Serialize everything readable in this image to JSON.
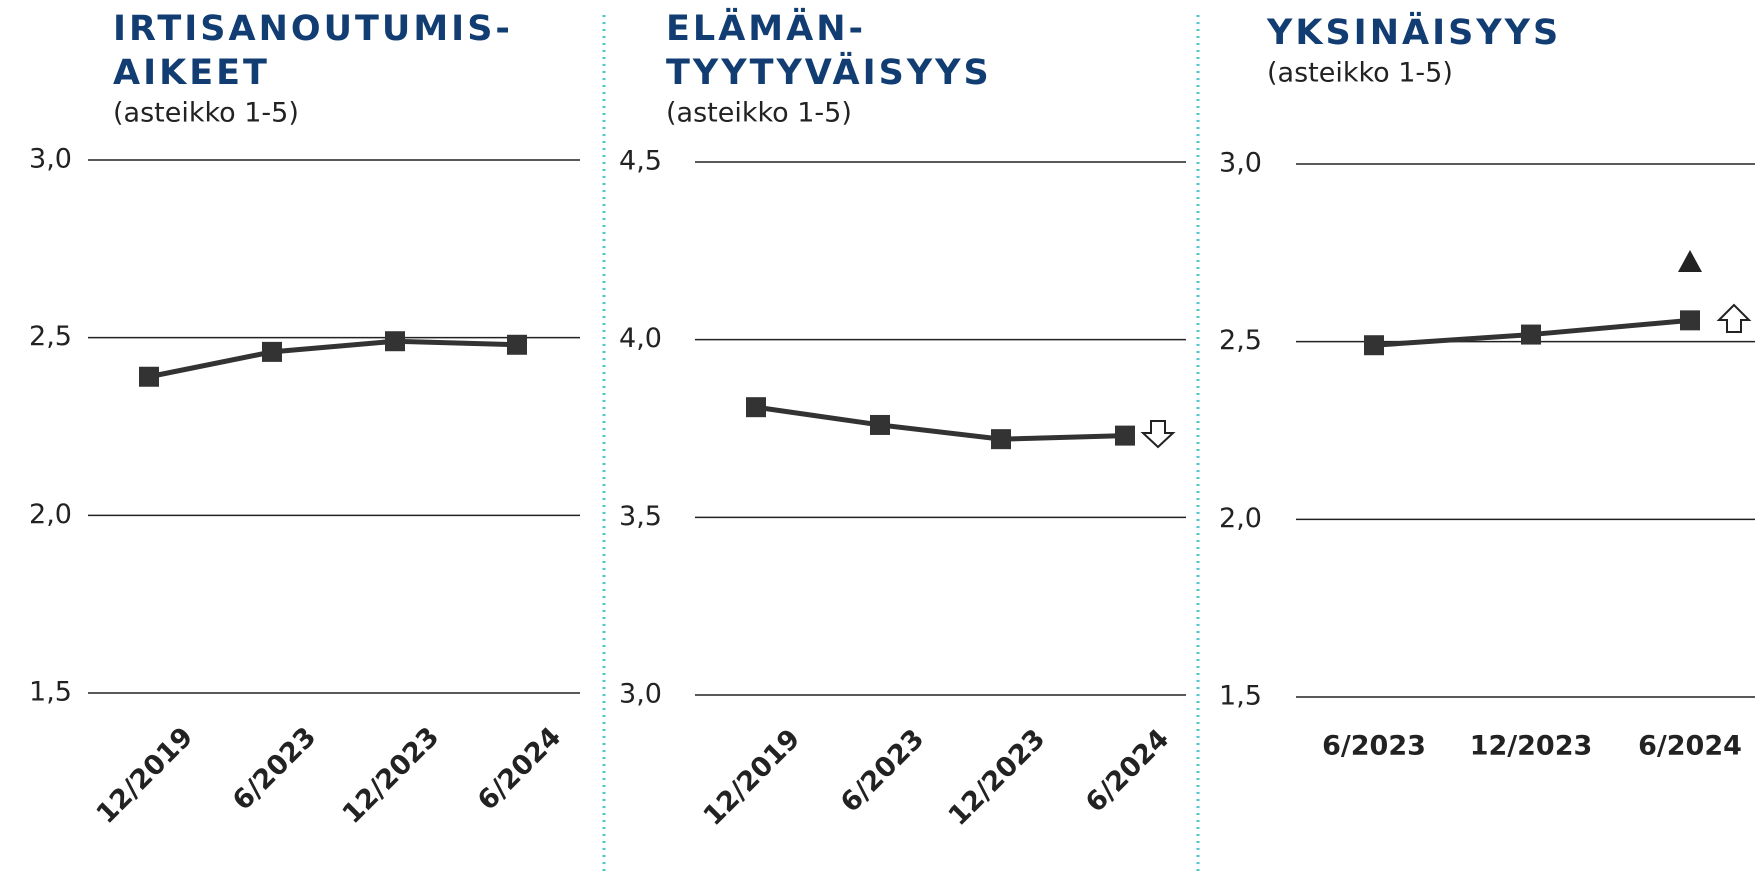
{
  "chart_data": [
    {
      "type": "line",
      "title": [
        "IRTISANOUTUMIS-",
        "AIKEET"
      ],
      "subtitle": "(asteikko 1-5)",
      "categories": [
        "12/2019",
        "6/2023",
        "12/2023",
        "6/2024"
      ],
      "series": [
        {
          "color": "#333333",
          "values": [
            2.39,
            2.46,
            2.49,
            2.48
          ]
        }
      ],
      "ylim": [
        1.5,
        3.0
      ],
      "yticks": [
        {
          "value": 1.5,
          "label": "1,5"
        },
        {
          "value": 2.0,
          "label": "2,0"
        },
        {
          "value": 2.5,
          "label": "2,5"
        },
        {
          "value": 3.0,
          "label": "3,0"
        }
      ],
      "grid": true
    },
    {
      "type": "line",
      "title": [
        "ELÄMÄN-",
        "TYYTYVÄISYYS"
      ],
      "subtitle": "(asteikko 1-5)",
      "categories": [
        "12/2019",
        "6/2023",
        "12/2023",
        "6/2024"
      ],
      "series": [
        {
          "color": "#333333",
          "values": [
            3.81,
            3.76,
            3.72,
            3.73
          ]
        }
      ],
      "ylim": [
        3.0,
        4.5
      ],
      "yticks": [
        {
          "value": 3.0,
          "label": "3,0"
        },
        {
          "value": 3.5,
          "label": "3,5"
        },
        {
          "value": 4.0,
          "label": "4,0"
        },
        {
          "value": 4.5,
          "label": "4,5"
        }
      ],
      "grid": true
    },
    {
      "type": "line",
      "title": [
        "YKSINÄISYYS"
      ],
      "subtitle": "(asteikko 1-5)",
      "categories": [
        "6/2023",
        "12/2023",
        "6/2024"
      ],
      "series": [
        {
          "color": "#333333",
          "values": [
            2.49,
            2.52,
            2.56
          ]
        }
      ],
      "ylim": [
        1.5,
        3.0
      ],
      "yticks": [
        {
          "value": 1.5,
          "label": "1,5"
        },
        {
          "value": 2.0,
          "label": "2,0"
        },
        {
          "value": 2.5,
          "label": "2,5"
        },
        {
          "value": 3.0,
          "label": "3,0"
        }
      ],
      "grid": true
    }
  ]
}
